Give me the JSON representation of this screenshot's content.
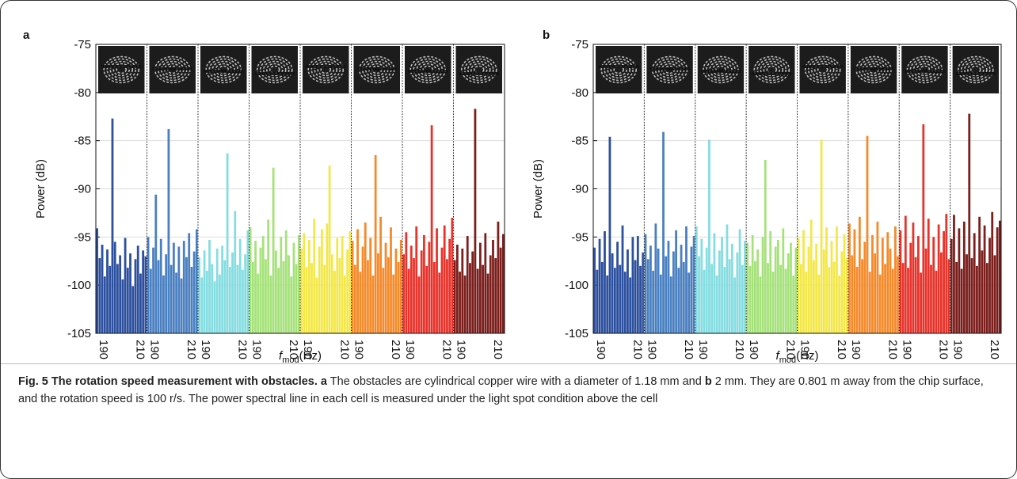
{
  "chart_data": [
    {
      "type": "spectrum",
      "panel_label": "a",
      "ylabel": "Power (dB)",
      "xlabel": {
        "symbol": "f",
        "subscript": "mod",
        "unit": "(Hz)"
      },
      "ylim": [
        -105,
        -75
      ],
      "yticks": [
        -75,
        -80,
        -85,
        -90,
        -95,
        -100,
        -105
      ],
      "xlim": [
        190,
        210
      ],
      "xticks": [
        190,
        210
      ],
      "grid": true,
      "x": [
        190.5,
        191.5,
        192.5,
        193.5,
        194.5,
        195.5,
        196.5,
        197.5,
        198.5,
        199.5,
        200.5,
        201.5,
        202.5,
        203.5,
        204.5,
        205.5,
        206.5,
        207.5,
        208.5,
        209.5
      ],
      "series": [
        {
          "color": "#2c4f9e",
          "values": [
            -94.1,
            -97.2,
            -95.8,
            -99.1,
            -96.3,
            -98.0,
            -82.7,
            -95.5,
            -97.8,
            -96.9,
            -99.4,
            -95.1,
            -98.2,
            -96.7,
            -100.1,
            -97.3,
            -95.9,
            -98.8,
            -96.4,
            -97.0
          ]
        },
        {
          "color": "#4a7fc0",
          "values": [
            -95.0,
            -98.3,
            -96.1,
            -90.6,
            -97.4,
            -95.2,
            -99.0,
            -96.8,
            -83.8,
            -97.9,
            -95.6,
            -98.7,
            -96.0,
            -99.3,
            -95.4,
            -97.1,
            -94.6,
            -98.1,
            -96.5,
            -94.2
          ]
        },
        {
          "color": "#86dde1",
          "values": [
            -97.1,
            -99.2,
            -96.4,
            -98.5,
            -95.3,
            -97.8,
            -99.6,
            -96.2,
            -98.9,
            -95.9,
            -97.4,
            -86.3,
            -98.1,
            -96.6,
            -92.3,
            -97.9,
            -95.2,
            -98.4,
            -96.8,
            -94.3
          ]
        },
        {
          "color": "#a6e27b",
          "values": [
            -94.0,
            -97.6,
            -95.4,
            -98.8,
            -96.1,
            -94.9,
            -97.3,
            -93.2,
            -99.0,
            -87.8,
            -96.4,
            -98.2,
            -95.0,
            -97.5,
            -94.3,
            -96.9,
            -99.1,
            -95.6,
            -97.8,
            -94.8
          ]
        },
        {
          "color": "#f3e84b",
          "values": [
            -96.2,
            -94.6,
            -98.1,
            -95.3,
            -97.7,
            -93.1,
            -99.2,
            -96.0,
            -94.2,
            -97.9,
            -93.6,
            -87.6,
            -96.8,
            -98.5,
            -95.1,
            -97.2,
            -94.9,
            -99.0,
            -96.3,
            -94.4
          ]
        },
        {
          "color": "#f58a2b",
          "values": [
            -95.4,
            -97.9,
            -94.2,
            -98.6,
            -96.0,
            -93.5,
            -97.4,
            -95.1,
            -99.0,
            -86.5,
            -96.7,
            -92.9,
            -98.2,
            -95.6,
            -97.1,
            -94.0,
            -98.9,
            -96.2,
            -97.6,
            -95.3
          ]
        },
        {
          "color": "#e8332b",
          "values": [
            -96.8,
            -94.5,
            -98.3,
            -95.9,
            -97.2,
            -93.9,
            -99.1,
            -96.4,
            -94.8,
            -98.0,
            -95.5,
            -83.4,
            -97.6,
            -94.1,
            -98.7,
            -96.1,
            -93.8,
            -97.3,
            -95.2,
            -93.0
          ]
        },
        {
          "color": "#7b1f1d",
          "values": [
            -97.4,
            -95.8,
            -98.6,
            -96.2,
            -99.0,
            -94.9,
            -97.7,
            -96.5,
            -81.7,
            -98.3,
            -95.6,
            -97.9,
            -94.6,
            -98.8,
            -96.9,
            -95.3,
            -97.2,
            -93.4,
            -96.1,
            -94.7
          ]
        }
      ]
    },
    {
      "type": "spectrum",
      "panel_label": "b",
      "ylabel": "Power (dB)",
      "xlabel": {
        "symbol": "f",
        "subscript": "mod",
        "unit": "(Hz)"
      },
      "ylim": [
        -105,
        -75
      ],
      "yticks": [
        -75,
        -80,
        -85,
        -90,
        -95,
        -100,
        -105
      ],
      "xlim": [
        190,
        210
      ],
      "xticks": [
        190,
        210
      ],
      "grid": true,
      "x": [
        190.5,
        191.5,
        192.5,
        193.5,
        194.5,
        195.5,
        196.5,
        197.5,
        198.5,
        199.5,
        200.5,
        201.5,
        202.5,
        203.5,
        204.5,
        205.5,
        206.5,
        207.5,
        208.5,
        209.5
      ],
      "series": [
        {
          "color": "#2c4f9e",
          "values": [
            -96.1,
            -98.4,
            -95.2,
            -97.6,
            -94.4,
            -99.0,
            -84.6,
            -96.7,
            -98.2,
            -95.5,
            -97.9,
            -93.8,
            -98.6,
            -96.3,
            -99.2,
            -95.0,
            -97.4,
            -94.9,
            -98.0,
            -96.6
          ]
        },
        {
          "color": "#4a7fc0",
          "values": [
            -94.7,
            -97.3,
            -95.9,
            -98.5,
            -93.6,
            -96.2,
            -98.9,
            -84.1,
            -97.0,
            -95.4,
            -99.1,
            -96.5,
            -94.3,
            -98.2,
            -95.8,
            -97.6,
            -93.9,
            -98.7,
            -96.0,
            -94.9
          ]
        },
        {
          "color": "#86dde1",
          "values": [
            -93.9,
            -97.0,
            -95.2,
            -98.4,
            -96.1,
            -84.9,
            -97.8,
            -94.6,
            -99.0,
            -96.4,
            -95.0,
            -98.1,
            -93.7,
            -97.3,
            -95.7,
            -99.2,
            -96.6,
            -94.2,
            -97.9,
            -95.4
          ]
        },
        {
          "color": "#a6e27b",
          "values": [
            -95.6,
            -98.0,
            -94.8,
            -97.5,
            -96.3,
            -99.1,
            -95.0,
            -87.0,
            -97.7,
            -94.4,
            -98.6,
            -96.0,
            -95.3,
            -97.9,
            -94.1,
            -98.3,
            -96.7,
            -95.6,
            -99.0,
            -96.1
          ]
        },
        {
          "color": "#f3e84b",
          "values": [
            -95.1,
            -97.8,
            -94.3,
            -98.6,
            -96.0,
            -93.2,
            -97.4,
            -95.7,
            -98.9,
            -84.9,
            -96.3,
            -94.0,
            -98.1,
            -95.4,
            -97.6,
            -93.9,
            -99.0,
            -96.5,
            -94.7,
            -97.2
          ]
        },
        {
          "color": "#f58a2b",
          "values": [
            -93.6,
            -96.9,
            -94.2,
            -98.1,
            -92.9,
            -97.3,
            -95.5,
            -84.5,
            -98.6,
            -94.8,
            -96.7,
            -93.4,
            -98.9,
            -95.1,
            -97.8,
            -94.5,
            -96.2,
            -98.3,
            -93.9,
            -97.0
          ]
        },
        {
          "color": "#e8332b",
          "values": [
            -94.3,
            -97.7,
            -92.8,
            -98.2,
            -95.6,
            -93.5,
            -97.1,
            -94.9,
            -98.7,
            -83.3,
            -96.2,
            -93.1,
            -97.9,
            -95.0,
            -98.5,
            -93.7,
            -96.6,
            -94.4,
            -92.6,
            -97.3
          ]
        },
        {
          "color": "#7b1f1d",
          "values": [
            -95.2,
            -92.7,
            -97.6,
            -94.1,
            -98.3,
            -93.4,
            -96.8,
            -82.2,
            -97.2,
            -94.6,
            -98.0,
            -92.9,
            -96.4,
            -93.8,
            -97.7,
            -95.1,
            -92.4,
            -96.9,
            -94.0,
            -93.3
          ]
        }
      ]
    }
  ],
  "caption": [
    {
      "text": "Fig. 5 The rotation speed measurement with obstacles.",
      "bold": true
    },
    {
      "text": " a",
      "bold": true
    },
    {
      "text": " The obstacles are cylindrical copper wire with a diameter of 1.18 mm and ",
      "bold": false
    },
    {
      "text": "b",
      "bold": true
    },
    {
      "text": " 2 mm. They are 0.801 m away from the chip surface, and the rotation speed is 100 r/s. The power spectral line in each cell is measured under the light spot condition above the cell",
      "bold": false
    }
  ]
}
